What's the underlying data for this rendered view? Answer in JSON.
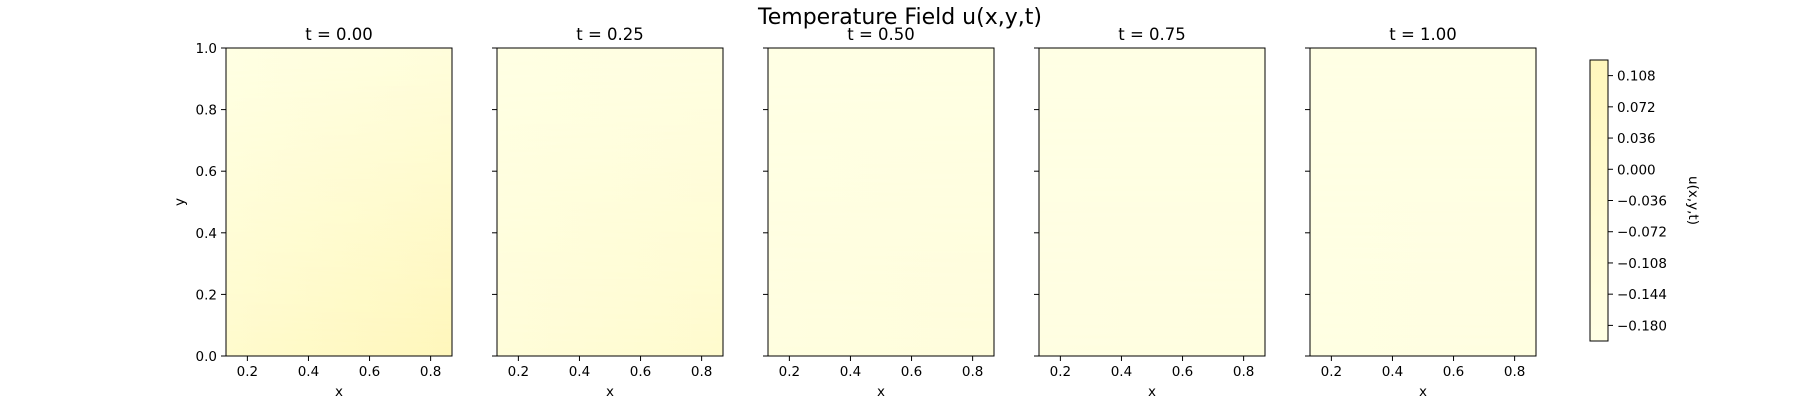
{
  "chart_data": {
    "type": "heatmap",
    "title": "Temperature Field u(x,y,t)",
    "panels": [
      {
        "title": "t = 0.00",
        "t": 0.0,
        "corner_values": {
          "x0_y0": -0.02,
          "x1_y0": 0.125,
          "x0_y1": -0.18,
          "x1_y1": -0.12
        }
      },
      {
        "title": "t = 0.25",
        "t": 0.25,
        "corner_values": {
          "x0_y0": -0.11,
          "x1_y0": -0.02,
          "x0_y1": -0.185,
          "x1_y1": -0.17
        }
      },
      {
        "title": "t = 0.50",
        "t": 0.5,
        "corner_values": {
          "x0_y0": -0.16,
          "x1_y0": -0.13,
          "x0_y1": -0.19,
          "x1_y1": -0.185
        }
      },
      {
        "title": "t = 0.75",
        "t": 0.75,
        "corner_values": {
          "x0_y0": -0.175,
          "x1_y0": -0.16,
          "x0_y1": -0.19,
          "x1_y1": -0.188
        }
      },
      {
        "title": "t = 1.00",
        "t": 1.0,
        "corner_values": {
          "x0_y0": -0.18,
          "x1_y0": -0.17,
          "x0_y1": -0.19,
          "x1_y1": -0.19
        }
      }
    ],
    "xlabel": "x",
    "ylabel": "y",
    "xlim": [
      0.13,
      0.87
    ],
    "ylim": [
      0.0,
      1.0
    ],
    "xticks": [
      "0.2",
      "0.4",
      "0.6",
      "0.8"
    ],
    "yticks": [
      "0.0",
      "0.2",
      "0.4",
      "0.6",
      "0.8",
      "1.0"
    ],
    "colorbar": {
      "label": "u(x,y,t)",
      "range": [
        -0.198,
        0.126
      ],
      "ticks": [
        "0.108",
        "0.072",
        "0.036",
        "0.000",
        "−0.036",
        "−0.072",
        "−0.108",
        "−0.144",
        "−0.180"
      ],
      "colormap": [
        "#ffffe5",
        "#fff7bc"
      ]
    },
    "grid": false
  }
}
